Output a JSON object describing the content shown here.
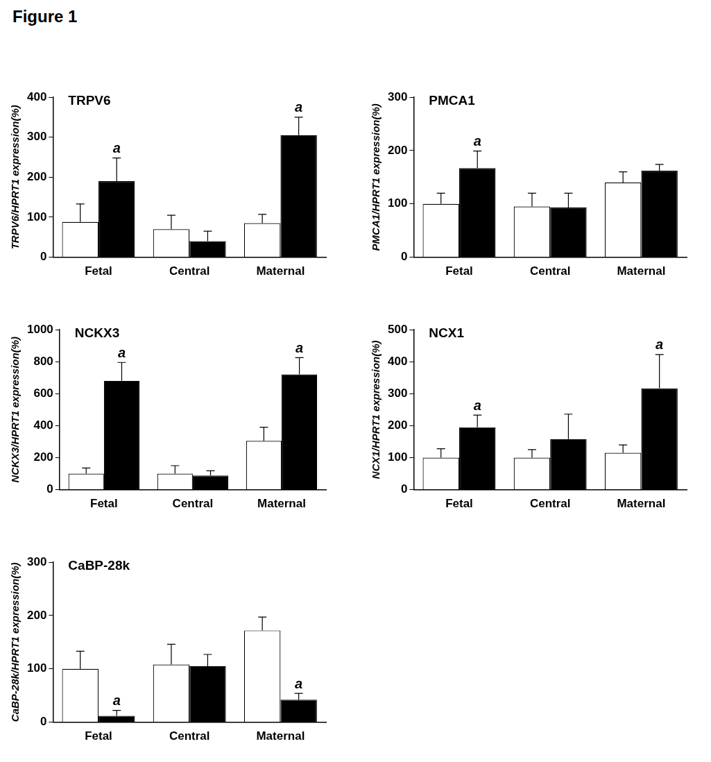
{
  "figure_title": "Figure 1",
  "chart_data": [
    {
      "type": "bar",
      "title": "TRPV6",
      "y_label": "TRPV6/HPRT1 expression(%)",
      "categories": [
        "Fetal",
        "Central",
        "Maternal"
      ],
      "series": [
        {
          "color": "#ffffff",
          "values": [
            88,
            70,
            85
          ],
          "errors": [
            45,
            35,
            22
          ],
          "annotations": [
            null,
            null,
            null
          ]
        },
        {
          "color": "#000000",
          "values": [
            190,
            40,
            305
          ],
          "errors": [
            58,
            25,
            45
          ],
          "annotations": [
            "a",
            null,
            "a"
          ]
        }
      ],
      "ylim": [
        0,
        400
      ],
      "yticks": [
        0,
        100,
        200,
        300,
        400
      ],
      "grid": false
    },
    {
      "type": "bar",
      "title": "PMCA1",
      "y_label": "PMCA1/HPRT1 expression(%)",
      "categories": [
        "Fetal",
        "Central",
        "Maternal"
      ],
      "series": [
        {
          "color": "#ffffff",
          "values": [
            100,
            95,
            140
          ],
          "errors": [
            20,
            25,
            20
          ],
          "annotations": [
            null,
            null,
            null
          ]
        },
        {
          "color": "#000000",
          "values": [
            167,
            93,
            162
          ],
          "errors": [
            32,
            27,
            12
          ],
          "annotations": [
            "a",
            null,
            null
          ]
        }
      ],
      "ylim": [
        0,
        300
      ],
      "yticks": [
        0,
        100,
        200,
        300
      ],
      "grid": false
    },
    {
      "type": "bar",
      "title": "NCKX3",
      "y_label": "NCKX3/HPRT1 expression(%)",
      "categories": [
        "Fetal",
        "Central",
        "Maternal"
      ],
      "series": [
        {
          "color": "#ffffff",
          "values": [
            100,
            100,
            305
          ],
          "errors": [
            35,
            50,
            85
          ],
          "annotations": [
            null,
            null,
            null
          ]
        },
        {
          "color": "#000000",
          "values": [
            680,
            88,
            720
          ],
          "errors": [
            115,
            30,
            105
          ],
          "annotations": [
            "a",
            null,
            "a"
          ]
        }
      ],
      "ylim": [
        0,
        1000
      ],
      "yticks": [
        0,
        200,
        400,
        600,
        800,
        1000
      ],
      "grid": false
    },
    {
      "type": "bar",
      "title": "NCX1",
      "y_label": "NCX1/HPRT1 expression(%)",
      "categories": [
        "Fetal",
        "Central",
        "Maternal"
      ],
      "series": [
        {
          "color": "#ffffff",
          "values": [
            100,
            100,
            115
          ],
          "errors": [
            28,
            25,
            25
          ],
          "annotations": [
            null,
            null,
            null
          ]
        },
        {
          "color": "#000000",
          "values": [
            195,
            158,
            317
          ],
          "errors": [
            38,
            78,
            105
          ],
          "annotations": [
            "a",
            null,
            "a"
          ]
        }
      ],
      "ylim": [
        0,
        500
      ],
      "yticks": [
        0,
        100,
        200,
        300,
        400,
        500
      ],
      "grid": false
    },
    {
      "type": "bar",
      "title": "CaBP-28k",
      "y_label": "CaBP-28k/HPRT1 expression(%)",
      "categories": [
        "Fetal",
        "Central",
        "Maternal"
      ],
      "series": [
        {
          "color": "#ffffff",
          "values": [
            100,
            108,
            172
          ],
          "errors": [
            33,
            38,
            25
          ],
          "annotations": [
            null,
            null,
            null
          ]
        },
        {
          "color": "#000000",
          "values": [
            12,
            105,
            42
          ],
          "errors": [
            10,
            22,
            12
          ],
          "annotations": [
            "a",
            null,
            "a"
          ]
        }
      ],
      "ylim": [
        0,
        300
      ],
      "yticks": [
        0,
        100,
        200,
        300
      ],
      "grid": false
    }
  ]
}
